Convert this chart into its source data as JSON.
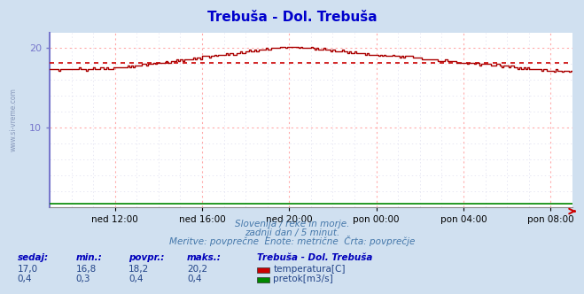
{
  "title": "Trebuša - Dol. Trebuša",
  "title_color": "#0000cc",
  "bg_color": "#d0e0f0",
  "plot_bg_color": "#ffffff",
  "grid_color_major": "#ffaaaa",
  "grid_color_minor": "#ffcccc",
  "grid_color_minor2": "#ddddee",
  "x_tick_labels": [
    "ned 12:00",
    "ned 16:00",
    "ned 20:00",
    "pon 00:00",
    "pon 04:00",
    "pon 08:00"
  ],
  "ylim": [
    0,
    22
  ],
  "y_ticks": [
    10,
    20
  ],
  "avg_line_value": 18.2,
  "avg_line_color": "#cc0000",
  "temp_color": "#aa0000",
  "flow_color": "#008800",
  "yaxis_color": "#7777cc",
  "watermark": "www.si-vreme.com",
  "subtitle1": "Slovenija / reke in morje.",
  "subtitle2": "zadnji dan / 5 minut.",
  "subtitle3": "Meritve: povprečne  Enote: metrične  Črta: povprečje",
  "subtitle_color": "#4477aa",
  "table_label_color": "#0000bb",
  "legend_title": "Trebuša - Dol. Trebuša",
  "legend_title_color": "#0000bb",
  "stats_labels": [
    "sedaj:",
    "min.:",
    "povpr.:",
    "maks.:"
  ],
  "stats_temp": [
    "17,0",
    "16,8",
    "18,2",
    "20,2"
  ],
  "stats_flow": [
    "0,4",
    "0,3",
    "0,4",
    "0,4"
  ],
  "legend_items": [
    {
      "label": "temperatura[C]",
      "color": "#cc0000"
    },
    {
      "label": "pretok[m3/s]",
      "color": "#008800"
    }
  ],
  "num_points": 289
}
